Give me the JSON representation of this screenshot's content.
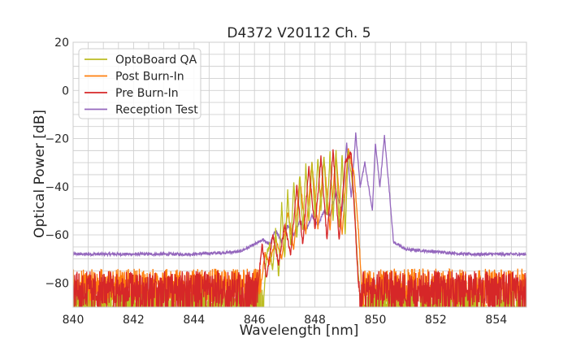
{
  "chart_data": {
    "type": "line",
    "title": "D4372 V20112 Ch. 5",
    "xlabel": "Wavelength [nm]",
    "ylabel": "Optical Power [dB]",
    "xlim": [
      840,
      855
    ],
    "ylim": [
      -90,
      20
    ],
    "xticks": [
      "840",
      "842",
      "844",
      "846",
      "848",
      "850",
      "852",
      "854"
    ],
    "yticks": [
      "−80",
      "−60",
      "−40",
      "−20",
      "0",
      "20"
    ],
    "grid": true,
    "legend_position": "top-left",
    "series": [
      {
        "name": "OptoBoard QA",
        "color": "#bcbd22",
        "noise_floor": -90,
        "x": [
          840.0,
          846.3,
          846.4,
          846.5,
          846.6,
          846.7,
          846.8,
          846.9,
          847.0,
          847.1,
          847.2,
          847.3,
          847.4,
          847.5,
          847.6,
          847.7,
          847.8,
          847.9,
          848.0,
          848.1,
          848.2,
          848.3,
          848.4,
          848.5,
          848.6,
          848.7,
          848.8,
          848.9,
          849.0,
          849.1,
          849.2,
          849.3,
          849.4,
          849.5,
          849.6,
          849.7,
          855.0
        ],
        "y": [
          -90,
          -88,
          -68,
          -64,
          -75,
          -58,
          -78,
          -47,
          -70,
          -42,
          -65,
          -38,
          -62,
          -35,
          -58,
          -31,
          -55,
          -30,
          -52,
          -28,
          -50,
          -27,
          -52,
          -26,
          -54,
          -25,
          -56,
          -26,
          -60,
          -25,
          -35,
          -45,
          -70,
          -88,
          -90,
          -90,
          -90
        ]
      },
      {
        "name": "Post Burn-In",
        "color": "#ff7f0e",
        "noise_floor": -82,
        "x": [
          840.0,
          846.2,
          846.35,
          846.5,
          846.7,
          846.9,
          847.1,
          847.3,
          847.5,
          847.7,
          847.9,
          848.1,
          848.3,
          848.5,
          848.7,
          848.9,
          849.1,
          849.3,
          849.45,
          849.55,
          855.0
        ],
        "y": [
          -82,
          -82,
          -68,
          -72,
          -62,
          -70,
          -50,
          -66,
          -36,
          -60,
          -30,
          -57,
          -28,
          -58,
          -26,
          -60,
          -24,
          -35,
          -60,
          -82,
          -82
        ]
      },
      {
        "name": "Pre Burn-In",
        "color": "#d62728",
        "noise_floor": -83,
        "x": [
          840.0,
          846.1,
          846.25,
          846.4,
          846.6,
          846.8,
          847.0,
          847.2,
          847.4,
          847.6,
          847.8,
          848.0,
          848.2,
          848.4,
          848.6,
          848.8,
          849.0,
          849.2,
          849.35,
          849.45,
          855.0
        ],
        "y": [
          -83,
          -83,
          -64,
          -78,
          -60,
          -72,
          -56,
          -68,
          -40,
          -64,
          -32,
          -58,
          -28,
          -62,
          -25,
          -62,
          -30,
          -26,
          -60,
          -83,
          -83
        ]
      },
      {
        "name": "Reception Test",
        "color": "#9467bd",
        "noise_floor": -68,
        "x": [
          840.0,
          844.0,
          845.5,
          846.0,
          846.3,
          846.5,
          846.7,
          846.9,
          847.1,
          847.3,
          847.5,
          847.7,
          847.9,
          848.1,
          848.3,
          848.5,
          848.7,
          848.9,
          849.05,
          849.2,
          849.35,
          849.5,
          849.65,
          849.8,
          849.9,
          850.0,
          850.15,
          850.3,
          850.45,
          850.6,
          851.0,
          852.0,
          853.0,
          855.0
        ],
        "y": [
          -68,
          -68,
          -67,
          -64,
          -62,
          -64,
          -58,
          -63,
          -56,
          -60,
          -54,
          -58,
          -52,
          -56,
          -50,
          -52,
          -42,
          -50,
          -22,
          -45,
          -18,
          -40,
          -30,
          -42,
          -50,
          -22,
          -40,
          -19,
          -40,
          -63,
          -66,
          -67,
          -68,
          -68
        ]
      }
    ]
  }
}
